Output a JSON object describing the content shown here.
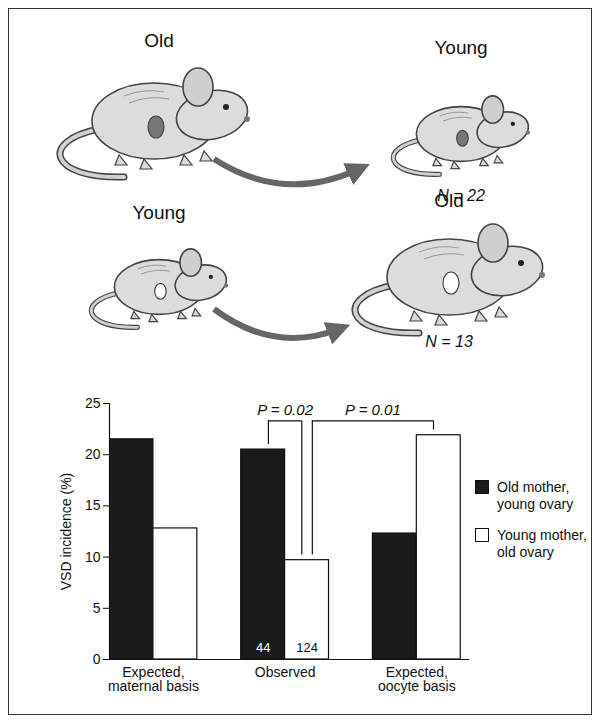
{
  "chart_data": {
    "type": "bar",
    "y_label": "VSD incidence (%)",
    "categories": [
      "Expected, maternal basis",
      "Observed",
      "Expected, oocyte basis"
    ],
    "series": [
      {
        "name": "Old mother, young ovary",
        "color": "#1a1a1a",
        "values": [
          21.5,
          20.5,
          12.3
        ],
        "counts": [
          null,
          44,
          null
        ]
      },
      {
        "name": "Young mother, old ovary",
        "color": "#ffffff",
        "values": [
          12.8,
          9.7,
          21.9
        ],
        "counts": [
          null,
          124,
          null
        ]
      }
    ],
    "comparisons": [
      {
        "label": "P = 0.02",
        "from": {
          "category": "Observed",
          "series": "Old mother, young ovary"
        },
        "to": {
          "category": "Observed",
          "series": "Young mother, old ovary"
        }
      },
      {
        "label": "P = 0.01",
        "from": {
          "category": "Observed",
          "series": "Young mother, old ovary"
        },
        "to": {
          "category": "Expected, oocyte basis",
          "series": "Young mother, old ovary"
        }
      }
    ],
    "ylim": [
      0,
      25
    ],
    "yticks": [
      0,
      5,
      10,
      15,
      20,
      25
    ],
    "grid": false,
    "legend": "right",
    "data_labels": false
  },
  "diagram": {
    "transplants": [
      {
        "donor": "Old",
        "recipient": "Young",
        "n": "N = 22"
      },
      {
        "donor": "Young",
        "recipient": "Old",
        "n": "N = 13"
      }
    ]
  }
}
